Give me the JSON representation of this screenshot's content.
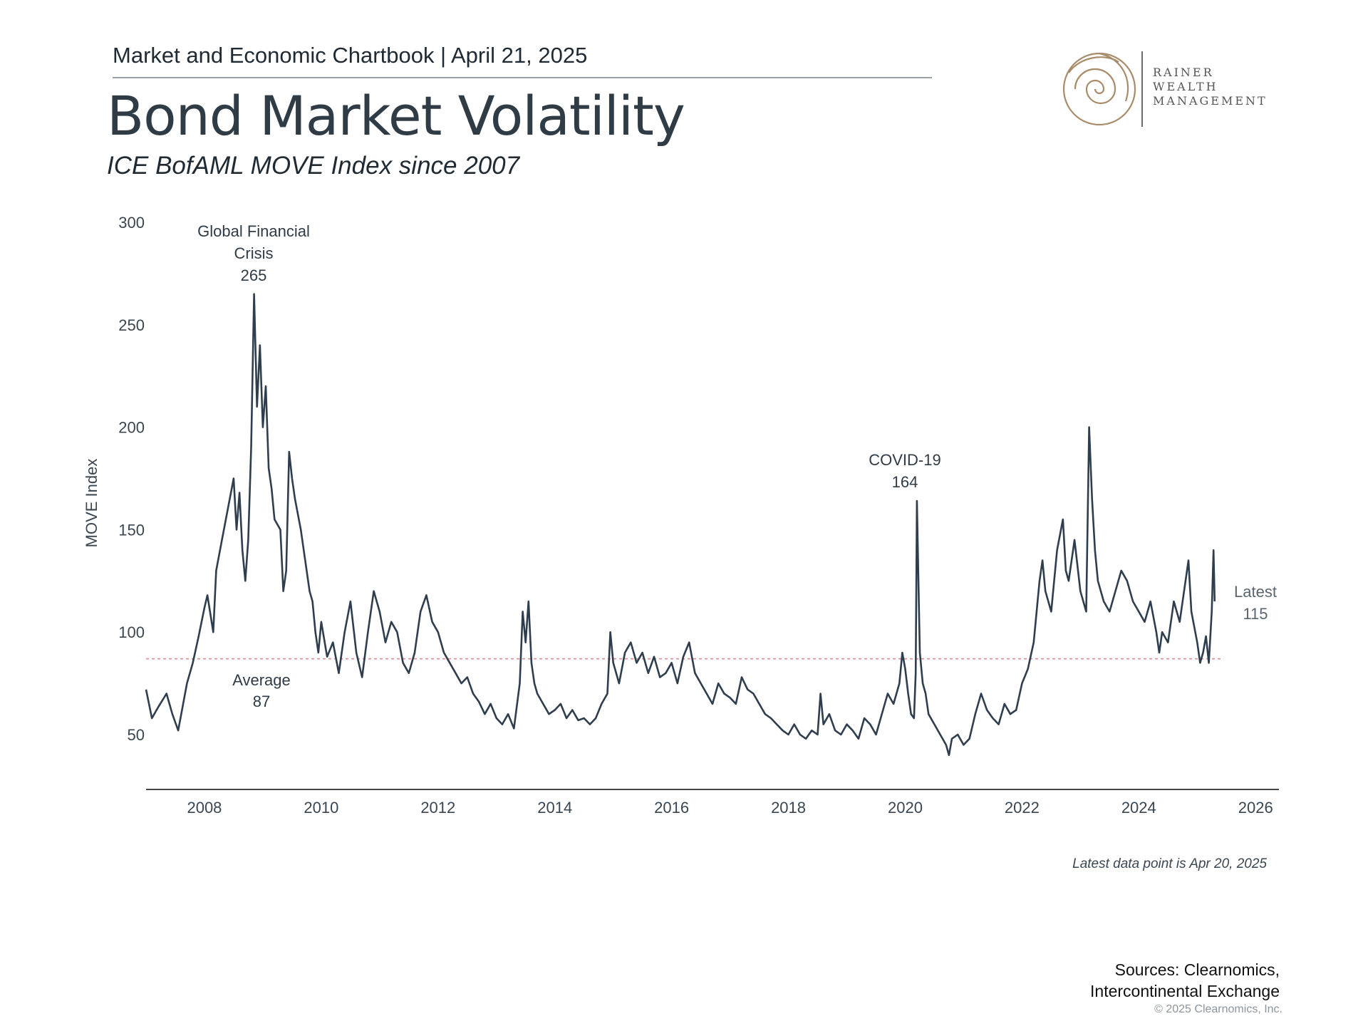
{
  "header": {
    "doc_title": "Market and Economic Chartbook | April 21, 2025",
    "title": "Bond Market Volatility",
    "subtitle": "ICE BofAML MOVE Index since 2007"
  },
  "logo": {
    "lines": [
      "RAINER",
      "WEALTH",
      "MANAGEMENT"
    ],
    "icon": "spiral-logo-icon",
    "color": "#a88c6a"
  },
  "chart_data": {
    "type": "line",
    "ylabel": "MOVE Index",
    "xlabel": "",
    "ylim": [
      25,
      300
    ],
    "xlim": [
      2007.0,
      2026.4
    ],
    "yticks": [
      50,
      100,
      150,
      200,
      250,
      300
    ],
    "xticks": [
      "2008",
      "2010",
      "2012",
      "2014",
      "2016",
      "2018",
      "2020",
      "2022",
      "2024",
      "2026"
    ],
    "grid": false,
    "line_color": "#2f3e4e",
    "average": {
      "value": 87,
      "label": "Average",
      "value_label": "87",
      "color": "#e08f95"
    },
    "annotations": [
      {
        "lines": [
          "Global Financial",
          "Crisis",
          "265"
        ],
        "x": 2008.85,
        "y": 265
      },
      {
        "lines": [
          "COVID-19",
          "164"
        ],
        "x": 2020.2,
        "y": 164
      },
      {
        "lines": [
          "Latest",
          "115"
        ],
        "x": 2025.3,
        "y": 115
      }
    ],
    "series": [
      {
        "values": [
          [
            2007.0,
            72
          ],
          [
            2007.1,
            58
          ],
          [
            2007.2,
            63
          ],
          [
            2007.35,
            70
          ],
          [
            2007.45,
            60
          ],
          [
            2007.55,
            52
          ],
          [
            2007.7,
            75
          ],
          [
            2007.8,
            85
          ],
          [
            2007.9,
            98
          ],
          [
            2008.0,
            112
          ],
          [
            2008.05,
            118
          ],
          [
            2008.15,
            100
          ],
          [
            2008.2,
            130
          ],
          [
            2008.3,
            145
          ],
          [
            2008.4,
            160
          ],
          [
            2008.5,
            175
          ],
          [
            2008.55,
            150
          ],
          [
            2008.6,
            168
          ],
          [
            2008.65,
            140
          ],
          [
            2008.7,
            125
          ],
          [
            2008.75,
            145
          ],
          [
            2008.8,
            190
          ],
          [
            2008.85,
            265
          ],
          [
            2008.9,
            210
          ],
          [
            2008.95,
            240
          ],
          [
            2009.0,
            200
          ],
          [
            2009.05,
            220
          ],
          [
            2009.1,
            180
          ],
          [
            2009.15,
            170
          ],
          [
            2009.2,
            155
          ],
          [
            2009.3,
            150
          ],
          [
            2009.35,
            120
          ],
          [
            2009.4,
            130
          ],
          [
            2009.45,
            188
          ],
          [
            2009.5,
            175
          ],
          [
            2009.55,
            165
          ],
          [
            2009.65,
            150
          ],
          [
            2009.7,
            140
          ],
          [
            2009.8,
            120
          ],
          [
            2009.85,
            115
          ],
          [
            2009.9,
            100
          ],
          [
            2009.95,
            90
          ],
          [
            2010.0,
            105
          ],
          [
            2010.1,
            88
          ],
          [
            2010.2,
            95
          ],
          [
            2010.3,
            80
          ],
          [
            2010.4,
            100
          ],
          [
            2010.5,
            115
          ],
          [
            2010.6,
            90
          ],
          [
            2010.7,
            78
          ],
          [
            2010.8,
            100
          ],
          [
            2010.9,
            120
          ],
          [
            2011.0,
            110
          ],
          [
            2011.1,
            95
          ],
          [
            2011.2,
            105
          ],
          [
            2011.3,
            100
          ],
          [
            2011.4,
            85
          ],
          [
            2011.5,
            80
          ],
          [
            2011.6,
            90
          ],
          [
            2011.7,
            110
          ],
          [
            2011.8,
            118
          ],
          [
            2011.9,
            105
          ],
          [
            2012.0,
            100
          ],
          [
            2012.1,
            90
          ],
          [
            2012.2,
            85
          ],
          [
            2012.3,
            80
          ],
          [
            2012.4,
            75
          ],
          [
            2012.5,
            78
          ],
          [
            2012.6,
            70
          ],
          [
            2012.7,
            66
          ],
          [
            2012.8,
            60
          ],
          [
            2012.9,
            65
          ],
          [
            2013.0,
            58
          ],
          [
            2013.1,
            55
          ],
          [
            2013.2,
            60
          ],
          [
            2013.3,
            53
          ],
          [
            2013.4,
            75
          ],
          [
            2013.45,
            110
          ],
          [
            2013.5,
            95
          ],
          [
            2013.55,
            115
          ],
          [
            2013.6,
            85
          ],
          [
            2013.65,
            75
          ],
          [
            2013.7,
            70
          ],
          [
            2013.8,
            65
          ],
          [
            2013.9,
            60
          ],
          [
            2014.0,
            62
          ],
          [
            2014.1,
            65
          ],
          [
            2014.2,
            58
          ],
          [
            2014.3,
            62
          ],
          [
            2014.4,
            57
          ],
          [
            2014.5,
            58
          ],
          [
            2014.6,
            55
          ],
          [
            2014.7,
            58
          ],
          [
            2014.8,
            65
          ],
          [
            2014.9,
            70
          ],
          [
            2014.95,
            100
          ],
          [
            2015.0,
            85
          ],
          [
            2015.1,
            75
          ],
          [
            2015.2,
            90
          ],
          [
            2015.3,
            95
          ],
          [
            2015.4,
            85
          ],
          [
            2015.5,
            90
          ],
          [
            2015.6,
            80
          ],
          [
            2015.7,
            88
          ],
          [
            2015.8,
            78
          ],
          [
            2015.9,
            80
          ],
          [
            2016.0,
            85
          ],
          [
            2016.1,
            75
          ],
          [
            2016.2,
            88
          ],
          [
            2016.3,
            95
          ],
          [
            2016.4,
            80
          ],
          [
            2016.5,
            75
          ],
          [
            2016.6,
            70
          ],
          [
            2016.7,
            65
          ],
          [
            2016.8,
            75
          ],
          [
            2016.9,
            70
          ],
          [
            2017.0,
            68
          ],
          [
            2017.1,
            65
          ],
          [
            2017.2,
            78
          ],
          [
            2017.3,
            72
          ],
          [
            2017.4,
            70
          ],
          [
            2017.5,
            65
          ],
          [
            2017.6,
            60
          ],
          [
            2017.7,
            58
          ],
          [
            2017.8,
            55
          ],
          [
            2017.9,
            52
          ],
          [
            2018.0,
            50
          ],
          [
            2018.1,
            55
          ],
          [
            2018.2,
            50
          ],
          [
            2018.3,
            48
          ],
          [
            2018.4,
            52
          ],
          [
            2018.5,
            50
          ],
          [
            2018.55,
            70
          ],
          [
            2018.6,
            55
          ],
          [
            2018.7,
            60
          ],
          [
            2018.8,
            52
          ],
          [
            2018.9,
            50
          ],
          [
            2019.0,
            55
          ],
          [
            2019.1,
            52
          ],
          [
            2019.2,
            48
          ],
          [
            2019.3,
            58
          ],
          [
            2019.4,
            55
          ],
          [
            2019.5,
            50
          ],
          [
            2019.6,
            60
          ],
          [
            2019.7,
            70
          ],
          [
            2019.8,
            65
          ],
          [
            2019.9,
            75
          ],
          [
            2019.95,
            90
          ],
          [
            2020.0,
            82
          ],
          [
            2020.05,
            70
          ],
          [
            2020.1,
            60
          ],
          [
            2020.15,
            58
          ],
          [
            2020.18,
            80
          ],
          [
            2020.2,
            164
          ],
          [
            2020.23,
            120
          ],
          [
            2020.25,
            90
          ],
          [
            2020.3,
            75
          ],
          [
            2020.35,
            70
          ],
          [
            2020.4,
            60
          ],
          [
            2020.5,
            55
          ],
          [
            2020.6,
            50
          ],
          [
            2020.7,
            45
          ],
          [
            2020.75,
            40
          ],
          [
            2020.8,
            48
          ],
          [
            2020.9,
            50
          ],
          [
            2021.0,
            45
          ],
          [
            2021.1,
            48
          ],
          [
            2021.2,
            60
          ],
          [
            2021.3,
            70
          ],
          [
            2021.4,
            62
          ],
          [
            2021.5,
            58
          ],
          [
            2021.6,
            55
          ],
          [
            2021.7,
            65
          ],
          [
            2021.8,
            60
          ],
          [
            2021.9,
            62
          ],
          [
            2022.0,
            75
          ],
          [
            2022.1,
            82
          ],
          [
            2022.2,
            95
          ],
          [
            2022.25,
            110
          ],
          [
            2022.3,
            125
          ],
          [
            2022.35,
            135
          ],
          [
            2022.4,
            120
          ],
          [
            2022.5,
            110
          ],
          [
            2022.6,
            140
          ],
          [
            2022.7,
            155
          ],
          [
            2022.75,
            130
          ],
          [
            2022.8,
            125
          ],
          [
            2022.9,
            145
          ],
          [
            2023.0,
            120
          ],
          [
            2023.1,
            110
          ],
          [
            2023.15,
            200
          ],
          [
            2023.2,
            165
          ],
          [
            2023.25,
            140
          ],
          [
            2023.3,
            125
          ],
          [
            2023.4,
            115
          ],
          [
            2023.5,
            110
          ],
          [
            2023.6,
            120
          ],
          [
            2023.7,
            130
          ],
          [
            2023.8,
            125
          ],
          [
            2023.9,
            115
          ],
          [
            2024.0,
            110
          ],
          [
            2024.1,
            105
          ],
          [
            2024.2,
            115
          ],
          [
            2024.3,
            100
          ],
          [
            2024.35,
            90
          ],
          [
            2024.4,
            100
          ],
          [
            2024.5,
            95
          ],
          [
            2024.6,
            115
          ],
          [
            2024.7,
            105
          ],
          [
            2024.8,
            125
          ],
          [
            2024.85,
            135
          ],
          [
            2024.9,
            110
          ],
          [
            2025.0,
            95
          ],
          [
            2025.05,
            85
          ],
          [
            2025.1,
            90
          ],
          [
            2025.15,
            98
          ],
          [
            2025.2,
            85
          ],
          [
            2025.25,
            110
          ],
          [
            2025.28,
            140
          ],
          [
            2025.3,
            115
          ]
        ]
      }
    ]
  },
  "footnote": "Latest data point is Apr 20, 2025",
  "sources": [
    "Sources: Clearnomics,",
    "Intercontinental Exchange"
  ],
  "copyright": "© 2025 Clearnomics, Inc."
}
